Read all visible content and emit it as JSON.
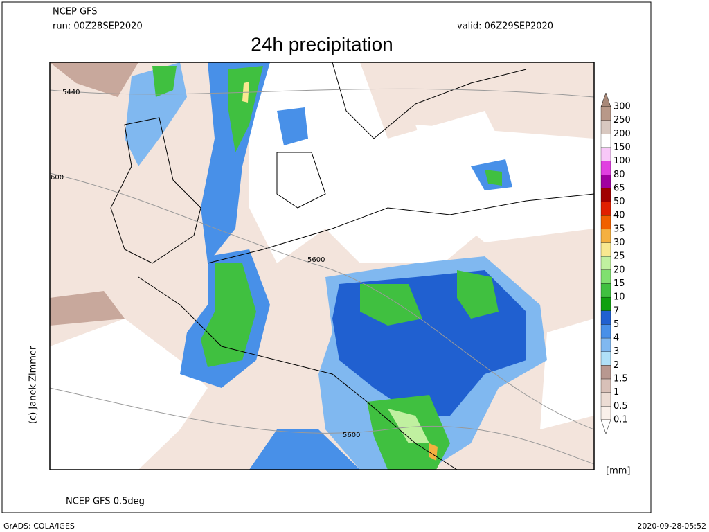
{
  "header": {
    "model": "NCEP GFS",
    "run": "run: 00Z28SEP2020",
    "valid": "valid: 06Z29SEP2020",
    "title": "24h precipitation"
  },
  "map": {
    "contour_labels": [
      "5440",
      "600",
      "5600",
      "5600"
    ]
  },
  "legend": {
    "labels": [
      "300",
      "250",
      "200",
      "150",
      "100",
      "80",
      "65",
      "50",
      "40",
      "35",
      "30",
      "25",
      "20",
      "15",
      "10",
      "7",
      "5",
      "4",
      "3",
      "2",
      "1.5",
      "1",
      "0.5",
      "0.1"
    ],
    "colors": [
      "#a88878",
      "#b89888",
      "#d8c8c0",
      "#ffffff",
      "#f8c8f8",
      "#e040e0",
      "#a000a0",
      "#a00000",
      "#e02000",
      "#f06000",
      "#f5b040",
      "#f8e890",
      "#c0f0a0",
      "#80e070",
      "#40c040",
      "#10a010",
      "#2060d0",
      "#4890e8",
      "#80b8f0",
      "#b0e0f8",
      "#b89890",
      "#d8c0b8",
      "#ecdcd4",
      "#faf0ea",
      "#ffffff"
    ],
    "unit": "[mm]"
  },
  "footer": {
    "resolution": "NCEP GFS 0.5deg",
    "credit": "(c) Janek Zimmer",
    "software": "GrADS: COLA/IGES",
    "timestamp": "2020-09-28-05:52"
  }
}
